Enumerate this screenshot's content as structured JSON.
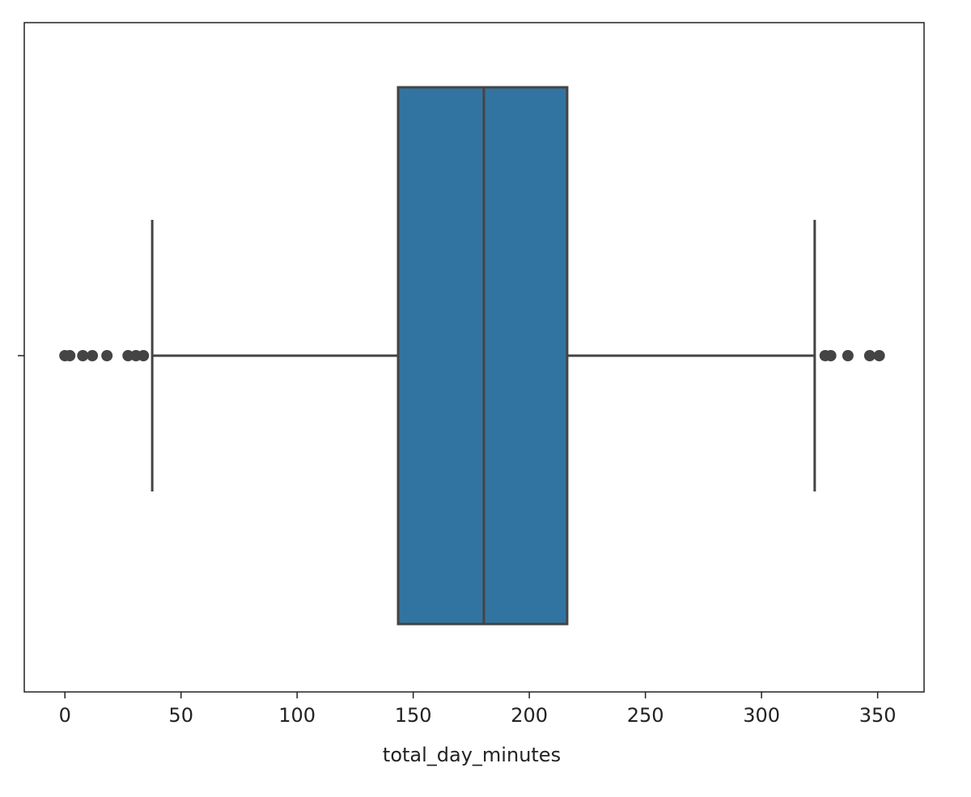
{
  "chart_data": {
    "type": "box",
    "x_label": "total_day_minutes",
    "xlim": [
      -17.5,
      370
    ],
    "xticks": [
      0,
      50,
      100,
      150,
      200,
      250,
      300,
      350
    ],
    "color": "#3274a1",
    "edge_color": "#444444",
    "boxes": [
      {
        "whislo": 37.6,
        "q1": 143.5,
        "med": 180.4,
        "q3": 216.3,
        "whishi": 322.9,
        "fliers": [
          0,
          2.1,
          7.7,
          11.8,
          18.1,
          27.2,
          30.6,
          33.8,
          327.4,
          329.8,
          337.2,
          346.6,
          350.7
        ]
      }
    ]
  }
}
